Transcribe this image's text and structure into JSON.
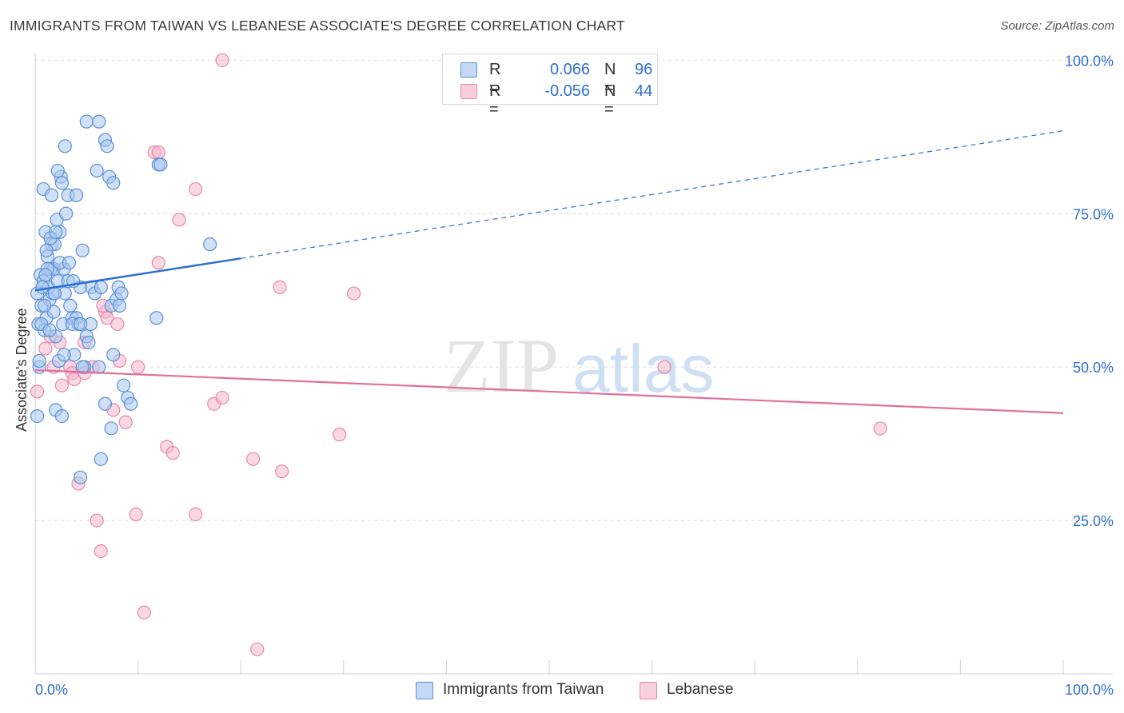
{
  "title": "IMMIGRANTS FROM TAIWAN VS LEBANESE ASSOCIATE'S DEGREE CORRELATION CHART",
  "source": "Source: ZipAtlas.com",
  "watermark": {
    "zip": "ZIP",
    "atlas": "atlas"
  },
  "colors": {
    "taiwan_fill": "#a9c8f0",
    "taiwan_stroke": "#5b8fd6",
    "taiwan_line": "#2a6fd1",
    "lebanese_fill": "#f5b8cc",
    "lebanese_stroke": "#e889a8",
    "lebanese_line": "#e0709a",
    "grid": "#dcdcdc",
    "tick_text": "#2f6fcf"
  },
  "legend": {
    "taiwan": {
      "r_label": "R =",
      "r_value": "0.066",
      "n_label": "N =",
      "n_value": "96"
    },
    "lebanese": {
      "r_label": "R =",
      "r_value": "-0.056",
      "n_label": "N =",
      "n_value": "44"
    }
  },
  "chart_data": {
    "type": "scatter",
    "title": "IMMIGRANTS FROM TAIWAN VS LEBANESE ASSOCIATE'S DEGREE CORRELATION CHART",
    "xlabel": "",
    "ylabel": "Associate's Degree",
    "xlim": [
      0,
      100
    ],
    "ylim": [
      0,
      102
    ],
    "x_tick_labels": [
      "0.0%",
      "100.0%"
    ],
    "y_ticks": [
      25,
      50,
      75,
      100
    ],
    "y_tick_labels": [
      "25.0%",
      "50.0%",
      "75.0%",
      "100.0%"
    ],
    "grid": true,
    "legend_position": "bottom",
    "series": [
      {
        "name": "Immigrants from Taiwan",
        "r": 0.066,
        "n": 96,
        "trend": {
          "x0": 0,
          "y0": 62.5,
          "x_solid_end": 20,
          "x1": 100,
          "y1": 88.5
        },
        "points": [
          [
            0.2,
            62
          ],
          [
            0.4,
            50
          ],
          [
            0.3,
            57
          ],
          [
            0.5,
            65
          ],
          [
            0.6,
            60
          ],
          [
            0.8,
            64
          ],
          [
            0.9,
            56
          ],
          [
            1.0,
            72
          ],
          [
            1.1,
            58
          ],
          [
            1.2,
            68
          ],
          [
            1.3,
            63
          ],
          [
            1.4,
            61
          ],
          [
            1.5,
            66
          ],
          [
            1.6,
            70
          ],
          [
            1.7,
            62
          ],
          [
            1.8,
            66
          ],
          [
            1.9,
            70
          ],
          [
            2.0,
            55
          ],
          [
            2.1,
            74
          ],
          [
            2.2,
            64
          ],
          [
            2.3,
            51
          ],
          [
            2.4,
            72
          ],
          [
            2.5,
            81
          ],
          [
            2.6,
            80
          ],
          [
            2.7,
            57
          ],
          [
            2.8,
            66
          ],
          [
            2.9,
            62
          ],
          [
            3.0,
            75
          ],
          [
            3.2,
            78
          ],
          [
            3.4,
            60
          ],
          [
            3.6,
            58
          ],
          [
            3.8,
            52
          ],
          [
            4.0,
            58
          ],
          [
            4.2,
            57
          ],
          [
            4.4,
            63
          ],
          [
            4.6,
            69
          ],
          [
            4.8,
            50
          ],
          [
            5.0,
            55
          ],
          [
            5.2,
            54
          ],
          [
            5.5,
            63
          ],
          [
            5.8,
            62
          ],
          [
            6.2,
            90
          ],
          [
            6.4,
            63
          ],
          [
            6.8,
            87
          ],
          [
            7.0,
            86
          ],
          [
            7.2,
            81
          ],
          [
            7.4,
            60
          ],
          [
            7.6,
            52
          ],
          [
            7.9,
            61
          ],
          [
            8.1,
            63
          ],
          [
            8.4,
            62
          ],
          [
            8.6,
            47
          ],
          [
            9.0,
            45
          ],
          [
            9.3,
            44
          ],
          [
            11.8,
            58
          ],
          [
            12.0,
            83
          ],
          [
            12.2,
            83
          ],
          [
            17.0,
            70
          ],
          [
            0.2,
            42
          ],
          [
            0.8,
            79
          ],
          [
            1.6,
            78
          ],
          [
            2.0,
            43
          ],
          [
            2.6,
            42
          ],
          [
            4.4,
            32
          ],
          [
            6.4,
            35
          ],
          [
            6.8,
            44
          ],
          [
            7.4,
            40
          ],
          [
            4.6,
            50
          ],
          [
            3.2,
            64
          ],
          [
            2.4,
            67
          ],
          [
            1.2,
            66
          ],
          [
            0.6,
            57
          ],
          [
            1.8,
            59
          ],
          [
            3.6,
            57
          ],
          [
            5.4,
            57
          ],
          [
            2.2,
            82
          ],
          [
            6.0,
            82
          ],
          [
            1.0,
            65
          ],
          [
            2.8,
            52
          ],
          [
            4.0,
            78
          ],
          [
            0.9,
            60
          ],
          [
            1.5,
            71
          ],
          [
            2.9,
            86
          ],
          [
            5.0,
            90
          ],
          [
            7.6,
            80
          ],
          [
            3.3,
            67
          ],
          [
            1.9,
            62
          ],
          [
            0.4,
            51
          ],
          [
            1.1,
            69
          ],
          [
            2.0,
            72
          ],
          [
            4.4,
            57
          ],
          [
            6.2,
            50
          ],
          [
            8.2,
            60
          ],
          [
            3.7,
            64
          ],
          [
            0.7,
            63
          ],
          [
            1.4,
            56
          ]
        ]
      },
      {
        "name": "Lebanese",
        "r": -0.056,
        "n": 44,
        "trend": {
          "x0": 0,
          "y0": 49.5,
          "x1": 100,
          "y1": 42.5
        },
        "points": [
          [
            0.2,
            46
          ],
          [
            1.0,
            53
          ],
          [
            1.5,
            55
          ],
          [
            2.6,
            47
          ],
          [
            3.4,
            50
          ],
          [
            3.6,
            49
          ],
          [
            3.8,
            48
          ],
          [
            4.2,
            31
          ],
          [
            4.8,
            54
          ],
          [
            5.6,
            50
          ],
          [
            6.0,
            25
          ],
          [
            6.4,
            20
          ],
          [
            6.8,
            59
          ],
          [
            7.0,
            58
          ],
          [
            7.6,
            43
          ],
          [
            8.0,
            57
          ],
          [
            8.2,
            51
          ],
          [
            8.8,
            41
          ],
          [
            9.8,
            26
          ],
          [
            10.0,
            50
          ],
          [
            10.6,
            10
          ],
          [
            11.6,
            85
          ],
          [
            12.0,
            85
          ],
          [
            12.0,
            67
          ],
          [
            12.8,
            37
          ],
          [
            13.4,
            36
          ],
          [
            14.0,
            74
          ],
          [
            15.6,
            79
          ],
          [
            15.6,
            26
          ],
          [
            17.4,
            44
          ],
          [
            18.2,
            45
          ],
          [
            18.2,
            100
          ],
          [
            21.2,
            35
          ],
          [
            21.6,
            4
          ],
          [
            23.8,
            63
          ],
          [
            24.0,
            33
          ],
          [
            29.6,
            39
          ],
          [
            31.0,
            62
          ],
          [
            61.2,
            50
          ],
          [
            82.2,
            40
          ],
          [
            1.8,
            50
          ],
          [
            2.4,
            54
          ],
          [
            4.8,
            49
          ],
          [
            6.6,
            60
          ]
        ]
      }
    ]
  }
}
